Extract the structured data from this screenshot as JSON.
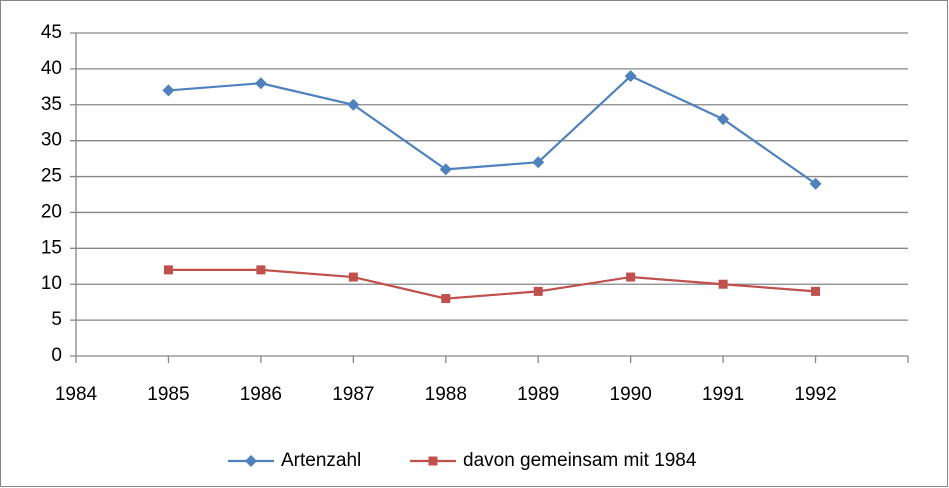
{
  "chart_data": {
    "type": "line",
    "x": [
      1985,
      1986,
      1987,
      1988,
      1989,
      1990,
      1991,
      1992
    ],
    "series": [
      {
        "name": "Artenzahl",
        "color": "#4f81bd",
        "marker": "diamond",
        "values": [
          37,
          38,
          35,
          26,
          27,
          39,
          33,
          24
        ]
      },
      {
        "name": "davon gemeinsam mit 1984",
        "color": "#c0504d",
        "marker": "square",
        "values": [
          12,
          12,
          11,
          8,
          9,
          11,
          10,
          9
        ]
      }
    ],
    "xlim": [
      1984,
      1993
    ],
    "xticks": [
      1984,
      1985,
      1986,
      1987,
      1988,
      1989,
      1990,
      1991,
      1992
    ],
    "ylim": [
      0,
      45
    ],
    "yticks": [
      0,
      5,
      10,
      15,
      20,
      25,
      30,
      35,
      40,
      45
    ],
    "grid": true,
    "legend": "bottom"
  }
}
